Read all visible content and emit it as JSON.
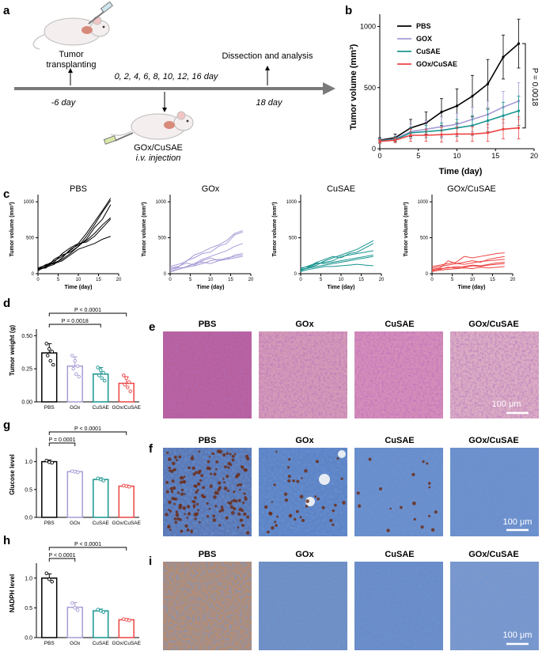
{
  "panel_letters": {
    "a": "a",
    "b": "b",
    "c": "c",
    "d": "d",
    "e": "e",
    "f": "f",
    "g": "g",
    "h": "h",
    "i": "i"
  },
  "colors": {
    "PBS": "#000000",
    "GOx": "#a89bd6",
    "CuSAE": "#17948f",
    "GOx/CuSAE": "#ee4444"
  },
  "schematic": {
    "tumor_label_1": "Tumor",
    "tumor_label_2": "transplanting",
    "day_start": "-6 day",
    "injection_days": "0, 2, 4, 6, 8, 10, 12, 16 day",
    "injection_label_1": "GOx/CuSAE",
    "injection_label_2": "i.v. injection",
    "dissection": "Dissection and analysis",
    "day_end": "18 day"
  },
  "images": {
    "he_titles": [
      "PBS",
      "GOx",
      "CuSAE",
      "GOx/CuSAE"
    ],
    "f_titles": [
      "PBS",
      "GOx",
      "CuSAE",
      "GOx/CuSAE"
    ],
    "i_titles": [
      "PBS",
      "GOx",
      "CuSAE",
      "GOx/CuSAE"
    ],
    "scale_bar": "100 μm"
  },
  "chart_data": [
    {
      "id": "b",
      "type": "line",
      "xlabel": "Time (day)",
      "ylabel": "Tumor volume (mm³)",
      "xlim": [
        0,
        20
      ],
      "ylim": [
        0,
        1100
      ],
      "xticks": [
        0,
        5,
        10,
        15,
        20
      ],
      "yticks": [
        0,
        500,
        1000
      ],
      "x": [
        0,
        2,
        4,
        6,
        8,
        10,
        12,
        14,
        16,
        18
      ],
      "annotation": "P = 0.0018",
      "series": [
        {
          "name": "PBS",
          "values": [
            70,
            90,
            170,
            210,
            300,
            350,
            430,
            530,
            750,
            860
          ],
          "errors": [
            20,
            30,
            70,
            90,
            110,
            140,
            170,
            200,
            180,
            200
          ]
        },
        {
          "name": "GOX",
          "values": [
            65,
            80,
            140,
            160,
            180,
            200,
            240,
            280,
            340,
            390
          ],
          "errors": [
            20,
            30,
            60,
            70,
            80,
            90,
            100,
            110,
            130,
            150
          ]
        },
        {
          "name": "CuSAE",
          "values": [
            65,
            75,
            130,
            140,
            150,
            170,
            190,
            230,
            270,
            310
          ],
          "errors": [
            15,
            25,
            40,
            50,
            60,
            70,
            80,
            90,
            110,
            120
          ]
        },
        {
          "name": "GOx/CuSAE",
          "values": [
            60,
            70,
            110,
            110,
            115,
            120,
            120,
            130,
            160,
            170
          ],
          "errors": [
            15,
            20,
            50,
            50,
            60,
            60,
            60,
            70,
            80,
            90
          ]
        }
      ]
    },
    {
      "id": "c",
      "type": "line",
      "xlabel": "Time (day)",
      "ylabel": "Tumor volume (mm³)",
      "xlim": [
        0,
        20
      ],
      "ylim": [
        0,
        1100
      ],
      "xticks": [
        0,
        5,
        10,
        15,
        20
      ],
      "yticks": [
        0,
        500,
        1000
      ],
      "x": [
        0,
        2,
        4,
        6,
        8,
        10,
        12,
        14,
        16,
        18
      ],
      "panels": [
        {
          "title": "PBS",
          "color_key": "PBS",
          "lines": [
            [
              80,
              120,
              180,
              240,
              320,
              420,
              560,
              720,
              880,
              1050
            ],
            [
              60,
              100,
              150,
              200,
              280,
              380,
              520,
              680,
              860,
              1020
            ],
            [
              50,
              90,
              130,
              220,
              340,
              400,
              460,
              560,
              680,
              780
            ],
            [
              70,
              80,
              200,
              260,
              300,
              380,
              480,
              640,
              760,
              960
            ],
            [
              40,
              110,
              160,
              280,
              360,
              420,
              440,
              520,
              640,
              760
            ],
            [
              60,
              130,
              140,
              180,
              260,
              340,
              380,
              420,
              480,
              520
            ]
          ]
        },
        {
          "title": "GOx",
          "color_key": "GOx",
          "lines": [
            [
              100,
              130,
              170,
              260,
              300,
              360,
              400,
              460,
              560,
              600
            ],
            [
              60,
              90,
              180,
              220,
              280,
              300,
              380,
              420,
              540,
              580
            ],
            [
              40,
              60,
              100,
              140,
              200,
              240,
              280,
              320,
              380,
              420
            ],
            [
              80,
              100,
              150,
              120,
              180,
              220,
              180,
              220,
              240,
              260
            ],
            [
              20,
              60,
              90,
              110,
              140,
              180,
              200,
              200,
              220,
              240
            ],
            [
              60,
              80,
              90,
              140,
              160,
              140,
              180,
              200,
              260,
              280
            ]
          ]
        },
        {
          "title": "CuSAE",
          "color_key": "CuSAE",
          "lines": [
            [
              60,
              80,
              120,
              180,
              220,
              260,
              300,
              340,
              400,
              460
            ],
            [
              80,
              100,
              160,
              200,
              240,
              220,
              280,
              300,
              360,
              420
            ],
            [
              40,
              90,
              140,
              160,
              180,
              240,
              260,
              280,
              300,
              320
            ],
            [
              70,
              110,
              150,
              140,
              160,
              180,
              200,
              220,
              240,
              260
            ],
            [
              50,
              80,
              100,
              120,
              140,
              160,
              180,
              200,
              220,
              240
            ],
            [
              30,
              60,
              80,
              100,
              100,
              110,
              120,
              130,
              120,
              110
            ]
          ]
        },
        {
          "title": "GOx/CuSAE",
          "color_key": "GOx/CuSAE",
          "lines": [
            [
              100,
              120,
              140,
              160,
              240,
              220,
              240,
              260,
              280,
              290
            ],
            [
              60,
              80,
              180,
              140,
              160,
              180,
              160,
              200,
              220,
              240
            ],
            [
              80,
              100,
              120,
              140,
              130,
              150,
              170,
              180,
              190,
              200
            ],
            [
              50,
              60,
              90,
              80,
              100,
              120,
              110,
              130,
              150,
              160
            ],
            [
              40,
              70,
              80,
              100,
              90,
              110,
              100,
              120,
              130,
              140
            ],
            [
              30,
              50,
              60,
              70,
              80,
              70,
              90,
              80,
              90,
              100
            ]
          ]
        }
      ]
    },
    {
      "id": "d",
      "type": "bar",
      "ylabel": "Tumor weight (g)",
      "categories": [
        "PBS",
        "GOx",
        "CuSAE",
        "GOx/CuSAE"
      ],
      "values": [
        0.37,
        0.27,
        0.21,
        0.14
      ],
      "errors": [
        0.07,
        0.07,
        0.05,
        0.05
      ],
      "points": [
        [
          0.44,
          0.4,
          0.38,
          0.35,
          0.31,
          0.28
        ],
        [
          0.35,
          0.31,
          0.27,
          0.25,
          0.21,
          0.19
        ],
        [
          0.26,
          0.24,
          0.22,
          0.2,
          0.18,
          0.16
        ],
        [
          0.2,
          0.18,
          0.15,
          0.13,
          0.11,
          0.08
        ]
      ],
      "ylim": [
        0,
        0.55
      ],
      "yticks": [
        0.0,
        0.25,
        0.5
      ],
      "ytick_labels": [
        "0.00",
        "0.25",
        "0.50"
      ],
      "brackets": [
        {
          "label": "P = 0.0018",
          "from": 0,
          "to": 2
        },
        {
          "label": "P < 0.0001",
          "from": 0,
          "to": 3
        }
      ]
    },
    {
      "id": "g",
      "type": "bar",
      "ylabel": "Glucose level",
      "categories": [
        "PBS",
        "GOx",
        "CuSAE",
        "GOx/CuSAE"
      ],
      "values": [
        1.0,
        0.82,
        0.68,
        0.56
      ],
      "errors": [
        0.03,
        0.02,
        0.03,
        0.02
      ],
      "points": [
        [
          1.02,
          0.99,
          0.98
        ],
        [
          0.83,
          0.82,
          0.81
        ],
        [
          0.7,
          0.68,
          0.66
        ],
        [
          0.57,
          0.56,
          0.55
        ]
      ],
      "ylim": [
        0,
        1.25
      ],
      "yticks": [
        0,
        0.5,
        1.0
      ],
      "ytick_labels": [
        "0.0",
        "0.5",
        "1.0"
      ],
      "brackets": [
        {
          "label": "P = 0.0001",
          "from": 0,
          "to": 1
        },
        {
          "label": "P < 0.0001",
          "from": 0,
          "to": 3
        }
      ]
    },
    {
      "id": "h",
      "type": "bar",
      "ylabel": "NADPH level",
      "categories": [
        "PBS",
        "GOx",
        "CuSAE",
        "GOx/CuSAE"
      ],
      "values": [
        1.0,
        0.51,
        0.45,
        0.3
      ],
      "errors": [
        0.07,
        0.08,
        0.03,
        0.02
      ],
      "points": [
        [
          1.08,
          0.98,
          0.94
        ],
        [
          0.58,
          0.5,
          0.46
        ],
        [
          0.47,
          0.45,
          0.43
        ],
        [
          0.31,
          0.3,
          0.29
        ]
      ],
      "ylim": [
        0,
        1.25
      ],
      "yticks": [
        0,
        0.5,
        1.0
      ],
      "ytick_labels": [
        "0.0",
        "0.5",
        "1.0"
      ],
      "brackets": [
        {
          "label": "P < 0.0001",
          "from": 0,
          "to": 1
        },
        {
          "label": "P < 0.0001",
          "from": 0,
          "to": 3
        }
      ]
    }
  ]
}
